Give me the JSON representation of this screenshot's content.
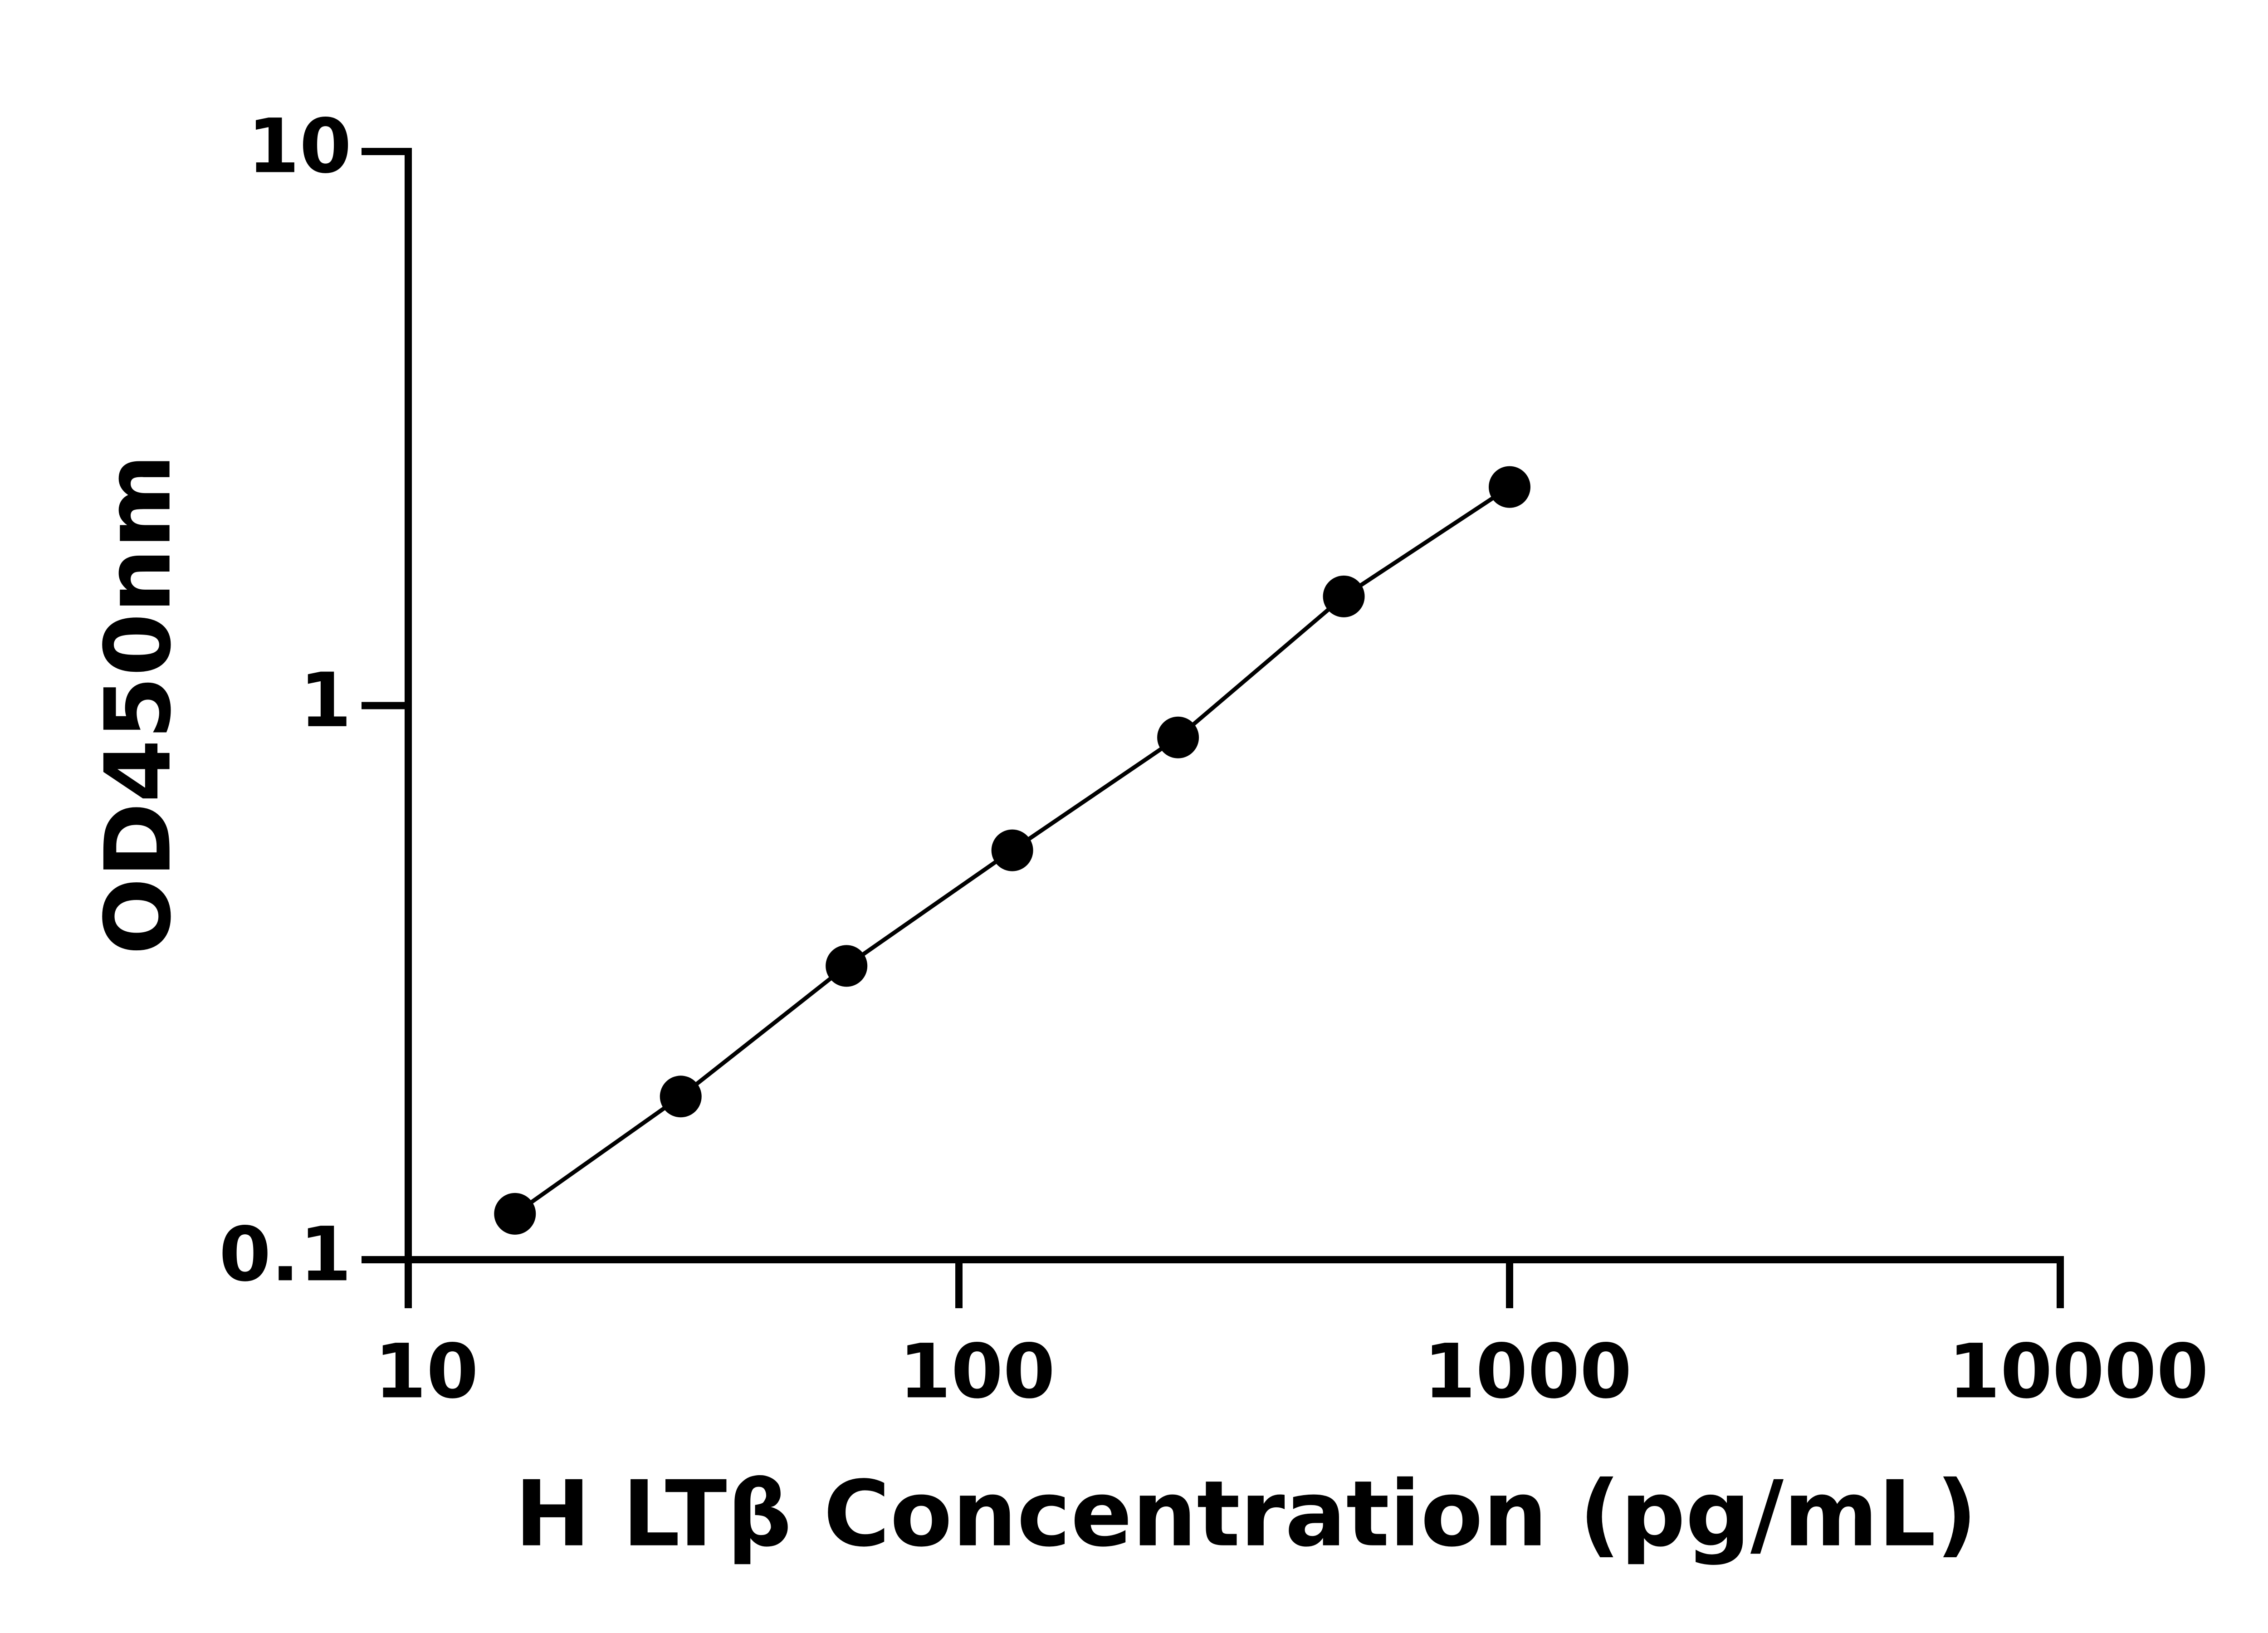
{
  "chart_data": {
    "type": "line",
    "x_label": "H LTβ Concentration (pg/mL)",
    "y_label": "OD450nm",
    "x": [
      15.625,
      31.25,
      62.5,
      125,
      250,
      500,
      1000
    ],
    "series": [
      {
        "color": "#000000",
        "values": [
          0.121,
          0.197,
          0.339,
          0.548,
          0.876,
          1.574,
          2.48
        ]
      }
    ],
    "xlim": [
      10,
      10000
    ],
    "xticks": [
      10,
      100,
      1000,
      10000
    ],
    "xlog": true,
    "ylim": [
      0.1,
      10
    ],
    "yticks": [
      0.1,
      1,
      10
    ],
    "ylog": true,
    "markers": true,
    "grid": false
  }
}
